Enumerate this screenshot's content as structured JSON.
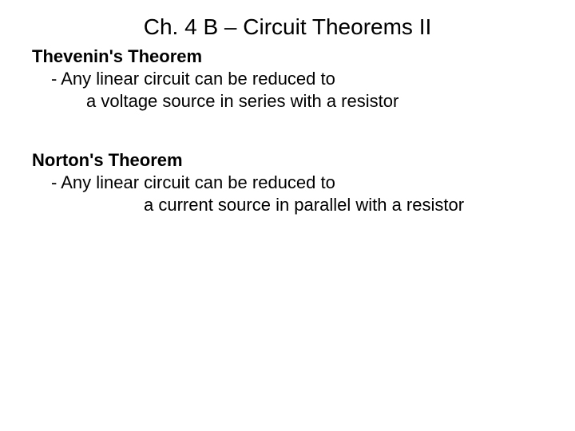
{
  "slide": {
    "title": "Ch. 4 B – Circuit Theorems II",
    "section1": {
      "heading": "Thevenin's Theorem",
      "line1": "- Any linear circuit can be reduced to",
      "line2": "a voltage source in series with a resistor"
    },
    "section2": {
      "heading": "Norton's Theorem",
      "line1": "- Any linear circuit can be reduced to",
      "line2": "a current source in parallel with a resistor"
    }
  }
}
